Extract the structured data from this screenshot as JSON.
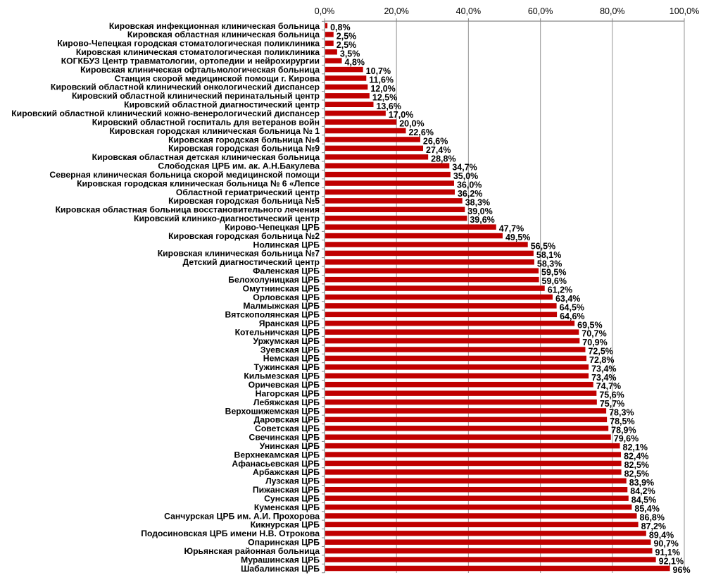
{
  "chart_data": {
    "type": "bar",
    "orientation": "horizontal",
    "title": "",
    "xlabel": "",
    "ylabel": "",
    "xlim": [
      0,
      100
    ],
    "x_ticks": [
      "0,0%",
      "20,0%",
      "40,0%",
      "60,0%",
      "80,0%",
      "100,0%"
    ],
    "x_tick_values": [
      0,
      20,
      40,
      60,
      80,
      100
    ],
    "x_axis_position": "top",
    "grid": true,
    "legend": "none",
    "bar_color": "#c00000",
    "categories": [
      "Кировская инфекционная клиническая больница",
      "Кировская областная клиническая больница",
      "Кирово-Чепецкая городская стоматологическая поликлиника",
      "Кировская клиническая стоматологическая поликлиника",
      "КОГКБУЗ Центр травматологии, ортопедии и нейрохирургии",
      "Кировская клиническая офтальмологическая больница",
      "Станция скорой медицинской помощи г. Кирова",
      "Кировский областной клинический онкологический диспансер",
      "Кировский областной клинический перинатальный центр",
      "Кировский областной диагностический центр",
      "Кировский областной клинический кожно-венерологический диспансер",
      "Кировский областной госпиталь для ветеранов войн",
      "Кировская городская клиническая больница № 1",
      "Кировская городская больница №4",
      "Кировская городская больница №9",
      "Кировская областная детская клиническая больница",
      "Слободская ЦРБ им. ак. А.Н.Бакулева",
      "Северная клиническая больница скорой медицинской помощи",
      "Кировская городская клиническая больница № 6 «Лепсе",
      "Областной гериатрический центр",
      "Кировская городская больница №5",
      "Кировская областная больница восстановительного лечения",
      "Кировский клинико-диагностический центр",
      "Кирово-Чепецкая ЦРБ",
      "Кировская городская больница №2",
      "Нолинская ЦРБ",
      "Кировская клиническая больница №7",
      "Детский диагностический центр",
      "Фаленская ЦРБ",
      "Белохолуницкая ЦРБ",
      "Омутнинская ЦРБ",
      "Орловская ЦРБ",
      "Малмыжская ЦРБ",
      "Вятскополянская ЦРБ",
      "Яранская ЦРБ",
      "Котельничская ЦРБ",
      "Уржумская ЦРБ",
      "Зуевская ЦРБ",
      "Немская ЦРБ",
      "Тужинская ЦРБ",
      "Кильмезская ЦРБ",
      "Оричевская ЦРБ",
      "Нагорская ЦРБ",
      "Лебяжская ЦРБ",
      "Верхошижемская ЦРБ",
      "Даровская ЦРБ",
      "Советская ЦРБ",
      "Свечинская ЦРБ",
      "Унинская ЦРБ",
      "Верхнекамская ЦРБ",
      "Афанасьевская ЦРБ",
      "Арбажская ЦРБ",
      "Лузская ЦРБ",
      "Пижанская ЦРБ",
      "Сунская ЦРБ",
      "Куменская ЦРБ",
      "Санчурская ЦРБ им. А.И. Прохорова",
      "Кикнурская ЦРБ",
      "Подосиновская ЦРБ имени Н.В. Отрокова",
      "Опаринская ЦРБ",
      "Юрьянская районная больница",
      "Мурашинская ЦРБ",
      "Шабалинская ЦРБ"
    ],
    "values": [
      0.8,
      2.5,
      2.5,
      3.5,
      4.8,
      10.7,
      11.6,
      12.0,
      12.5,
      13.6,
      17.0,
      20.0,
      22.6,
      26.6,
      27.4,
      28.8,
      34.7,
      35.0,
      36.0,
      36.2,
      38.3,
      39.0,
      39.6,
      47.7,
      49.5,
      56.5,
      58.1,
      58.3,
      59.5,
      59.6,
      61.2,
      63.4,
      64.5,
      64.6,
      69.5,
      70.7,
      70.9,
      72.5,
      72.8,
      73.4,
      73.4,
      74.7,
      75.6,
      75.7,
      78.3,
      78.5,
      78.9,
      79.6,
      82.1,
      82.4,
      82.5,
      82.5,
      83.9,
      84.2,
      84.5,
      85.4,
      86.8,
      87.2,
      89.4,
      90.7,
      91.1,
      92.1,
      96
    ],
    "data_labels": [
      "0,8%",
      "2,5%",
      "2,5%",
      "3,5%",
      "4,8%",
      "10,7%",
      "11,6%",
      "12,0%",
      "12,5%",
      "13,6%",
      "17,0%",
      "20,0%",
      "22,6%",
      "26,6%",
      "27,4%",
      "28,8%",
      "34,7%",
      "35,0%",
      "36,0%",
      "36,2%",
      "38,3%",
      "39,0%",
      "39,6%",
      "47,7%",
      "49,5%",
      "56,5%",
      "58,1%",
      "58,3%",
      "59,5%",
      "59,6%",
      "61,2%",
      "63,4%",
      "64,5%",
      "64,6%",
      "69,5%",
      "70,7%",
      "70,9%",
      "72,5%",
      "72,8%",
      "73,4%",
      "73,4%",
      "74,7%",
      "75,6%",
      "75,7%",
      "78,3%",
      "78,5%",
      "78,9%",
      "79,6%",
      "82,1%",
      "82,4%",
      "82,5%",
      "82,5%",
      "83,9%",
      "84,2%",
      "84,5%",
      "85,4%",
      "86,8%",
      "87,2%",
      "89,4%",
      "90,7%",
      "91,1%",
      "92,1%",
      "96%"
    ]
  }
}
